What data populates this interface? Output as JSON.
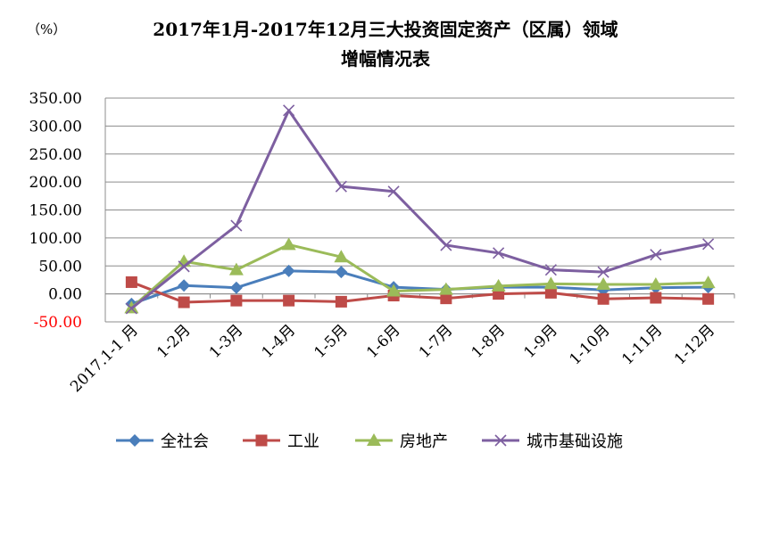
{
  "chart_data": {
    "type": "line",
    "title": [
      "2017年1月-2017年12月三大投资固定资产（区属）领域",
      "增幅情况表"
    ],
    "unit_label": "（%）",
    "categories": [
      "2017.1-1 月",
      "1-2月",
      "1-3月",
      "1-4月",
      "1-5月",
      "1-6月",
      "1-7月",
      "1-8月",
      "1-9月",
      "1-10月",
      "1-11月",
      "1-12月"
    ],
    "ylim": [
      -50,
      350
    ],
    "yticks": [
      -50,
      0,
      50,
      100,
      150,
      200,
      250,
      300,
      350
    ],
    "ytick_labels": [
      "-50.00",
      "0.00",
      "50.00",
      "100.00",
      "150.00",
      "200.00",
      "250.00",
      "300.00",
      "350.00"
    ],
    "negative_tick_color": "#ff0000",
    "grid": "horizontal",
    "legend_position": "bottom",
    "series": [
      {
        "name": "全社会",
        "color": "#4a7ebb",
        "marker": "diamond",
        "values": [
          -18,
          15,
          11,
          41,
          39,
          12,
          8,
          12,
          12,
          7,
          11,
          12
        ]
      },
      {
        "name": "工业",
        "color": "#be4b48",
        "marker": "square",
        "values": [
          21,
          -15,
          -12,
          -12,
          -14,
          -3,
          -8,
          0,
          2,
          -9,
          -7,
          -9
        ]
      },
      {
        "name": "房地产",
        "color": "#9bbb59",
        "marker": "triangle",
        "values": [
          -25,
          58,
          43,
          88,
          66,
          5,
          8,
          14,
          18,
          17,
          17,
          20
        ]
      },
      {
        "name": "城市基础设施",
        "color": "#7d5fa0",
        "marker": "x",
        "values": [
          -26,
          49,
          122,
          328,
          192,
          183,
          87,
          73,
          43,
          39,
          70,
          89
        ]
      }
    ]
  }
}
